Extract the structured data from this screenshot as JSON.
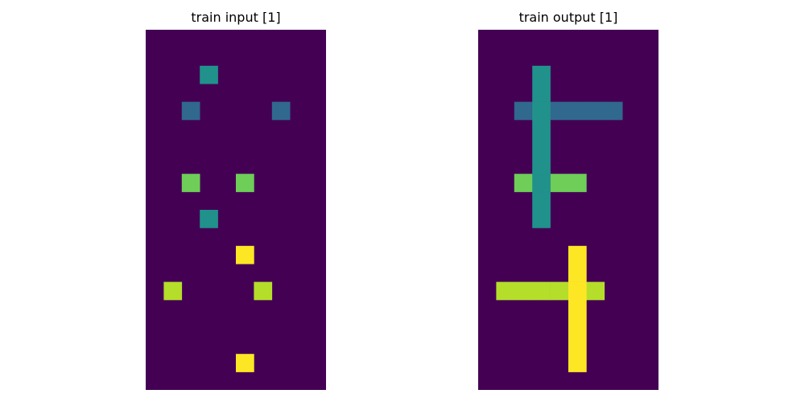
{
  "panels": [
    {
      "title": "train input [1]",
      "rows": 20,
      "cols": 10,
      "background": "#440154",
      "cells": [
        {
          "r": 2,
          "c": 3,
          "color": "#21918c"
        },
        {
          "r": 4,
          "c": 2,
          "color": "#31688e"
        },
        {
          "r": 4,
          "c": 7,
          "color": "#31688e"
        },
        {
          "r": 8,
          "c": 2,
          "color": "#6ece58"
        },
        {
          "r": 8,
          "c": 5,
          "color": "#6ece58"
        },
        {
          "r": 10,
          "c": 3,
          "color": "#21918c"
        },
        {
          "r": 12,
          "c": 5,
          "color": "#fde725"
        },
        {
          "r": 14,
          "c": 1,
          "color": "#b5de2b"
        },
        {
          "r": 14,
          "c": 6,
          "color": "#b5de2b"
        },
        {
          "r": 18,
          "c": 5,
          "color": "#fde725"
        }
      ]
    },
    {
      "title": "train output [1]",
      "rows": 20,
      "cols": 10,
      "background": "#440154",
      "cells": [
        {
          "r": 4,
          "c": 2,
          "color": "#31688e"
        },
        {
          "r": 4,
          "c": 4,
          "color": "#31688e"
        },
        {
          "r": 4,
          "c": 5,
          "color": "#31688e"
        },
        {
          "r": 4,
          "c": 6,
          "color": "#31688e"
        },
        {
          "r": 4,
          "c": 7,
          "color": "#31688e"
        },
        {
          "r": 8,
          "c": 2,
          "color": "#6ece58"
        },
        {
          "r": 8,
          "c": 4,
          "color": "#6ece58"
        },
        {
          "r": 8,
          "c": 5,
          "color": "#6ece58"
        },
        {
          "r": 2,
          "c": 3,
          "color": "#21918c"
        },
        {
          "r": 3,
          "c": 3,
          "color": "#21918c"
        },
        {
          "r": 4,
          "c": 3,
          "color": "#21918c"
        },
        {
          "r": 5,
          "c": 3,
          "color": "#21918c"
        },
        {
          "r": 6,
          "c": 3,
          "color": "#21918c"
        },
        {
          "r": 7,
          "c": 3,
          "color": "#21918c"
        },
        {
          "r": 8,
          "c": 3,
          "color": "#21918c"
        },
        {
          "r": 9,
          "c": 3,
          "color": "#21918c"
        },
        {
          "r": 10,
          "c": 3,
          "color": "#21918c"
        },
        {
          "r": 14,
          "c": 1,
          "color": "#b5de2b"
        },
        {
          "r": 14,
          "c": 2,
          "color": "#b5de2b"
        },
        {
          "r": 14,
          "c": 3,
          "color": "#b5de2b"
        },
        {
          "r": 14,
          "c": 4,
          "color": "#b5de2b"
        },
        {
          "r": 14,
          "c": 6,
          "color": "#b5de2b"
        },
        {
          "r": 12,
          "c": 5,
          "color": "#fde725"
        },
        {
          "r": 13,
          "c": 5,
          "color": "#fde725"
        },
        {
          "r": 14,
          "c": 5,
          "color": "#fde725"
        },
        {
          "r": 15,
          "c": 5,
          "color": "#fde725"
        },
        {
          "r": 16,
          "c": 5,
          "color": "#fde725"
        },
        {
          "r": 17,
          "c": 5,
          "color": "#fde725"
        },
        {
          "r": 18,
          "c": 5,
          "color": "#fde725"
        }
      ]
    }
  ]
}
